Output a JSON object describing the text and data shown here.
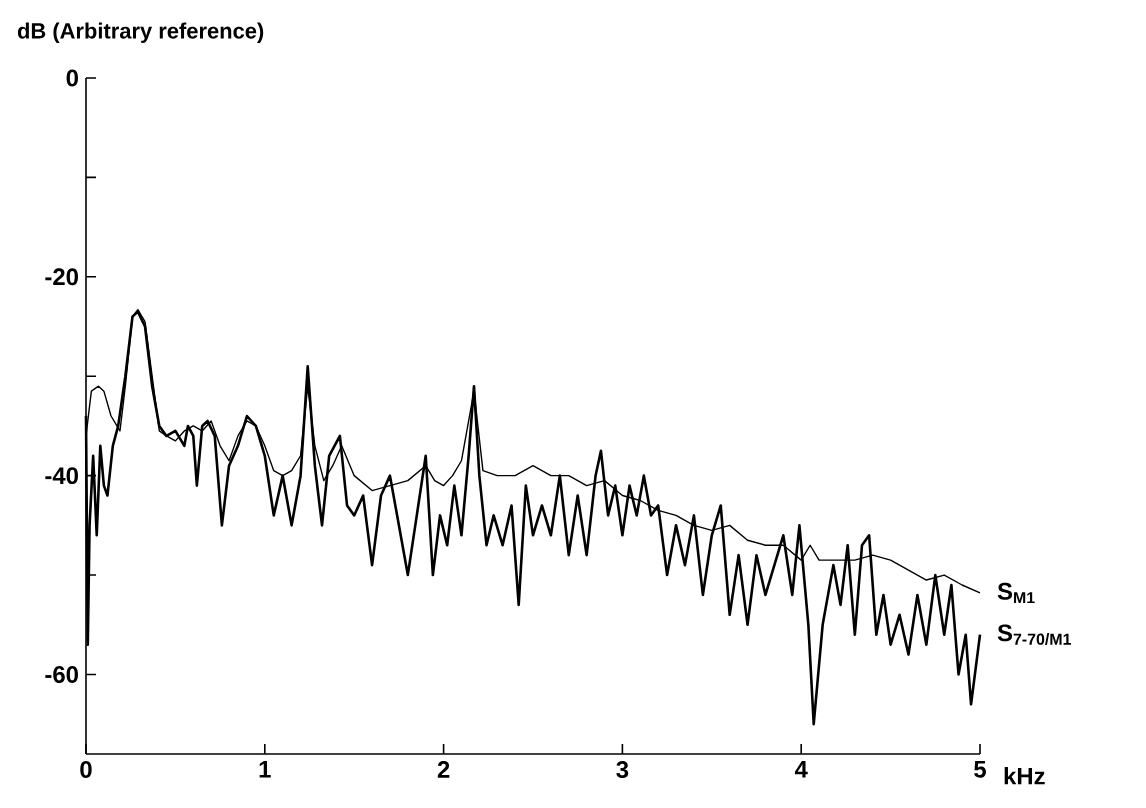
{
  "chart_data": {
    "type": "line",
    "ylabel": "dB (Arbitrary reference)",
    "xlabel": "kHz",
    "xlim": [
      0,
      5
    ],
    "ylim": [
      -68,
      0
    ],
    "xticks": [
      0,
      1,
      2,
      3,
      4,
      5
    ],
    "yticks": [
      0,
      {
        "value": -10,
        "label": null
      },
      -20,
      {
        "value": -30,
        "label": null
      },
      -40,
      {
        "value": -50,
        "label": null
      },
      -60
    ],
    "series": [
      {
        "name": "S$_{M1}$",
        "color": "#000000",
        "x": [
          0.0,
          0.03,
          0.07,
          0.1,
          0.14,
          0.19,
          0.22,
          0.26,
          0.29,
          0.33,
          0.37,
          0.41,
          0.45,
          0.5,
          0.55,
          0.6,
          0.65,
          0.7,
          0.75,
          0.8,
          0.85,
          0.9,
          0.95,
          1.0,
          1.05,
          1.1,
          1.15,
          1.2,
          1.24,
          1.28,
          1.33,
          1.38,
          1.43,
          1.5,
          1.6,
          1.7,
          1.8,
          1.9,
          1.95,
          2.0,
          2.05,
          2.1,
          2.17,
          2.22,
          2.3,
          2.4,
          2.5,
          2.6,
          2.7,
          2.8,
          2.9,
          3.0,
          3.1,
          3.2,
          3.3,
          3.4,
          3.5,
          3.6,
          3.7,
          3.8,
          3.9,
          4.0,
          4.05,
          4.1,
          4.2,
          4.3,
          4.4,
          4.5,
          4.6,
          4.7,
          4.8,
          4.9,
          5.0
        ],
        "values": [
          -36,
          -31.5,
          -31,
          -31.5,
          -34,
          -35.5,
          -31,
          -24,
          -23.3,
          -24.5,
          -30,
          -35.5,
          -36,
          -36.5,
          -35.5,
          -35,
          -35.5,
          -34.5,
          -37,
          -38.5,
          -36,
          -34.5,
          -35,
          -37,
          -39.5,
          -40,
          -39.5,
          -38,
          -31,
          -37,
          -40.5,
          -39,
          -37,
          -40,
          -41.5,
          -41,
          -40.5,
          -39,
          -40.5,
          -41,
          -40,
          -38.5,
          -31.5,
          -39.5,
          -40,
          -40,
          -39,
          -40,
          -40,
          -41,
          -40.5,
          -42,
          -42.5,
          -43.5,
          -44,
          -45,
          -45.5,
          -45,
          -46.5,
          -47,
          -47,
          -48.5,
          -47,
          -48.5,
          -48.5,
          -48.5,
          -48,
          -48.5,
          -49.5,
          -50.5,
          -50,
          -51,
          -51.8
        ]
      },
      {
        "name": "S$_{7-70/M1}$",
        "color": "#000000",
        "x": [
          0.0,
          0.01,
          0.02,
          0.04,
          0.06,
          0.08,
          0.1,
          0.12,
          0.15,
          0.18,
          0.22,
          0.26,
          0.29,
          0.33,
          0.37,
          0.41,
          0.45,
          0.5,
          0.55,
          0.57,
          0.6,
          0.62,
          0.65,
          0.68,
          0.72,
          0.76,
          0.8,
          0.85,
          0.9,
          0.95,
          1.0,
          1.05,
          1.1,
          1.15,
          1.2,
          1.24,
          1.28,
          1.32,
          1.36,
          1.42,
          1.46,
          1.5,
          1.55,
          1.6,
          1.65,
          1.7,
          1.75,
          1.8,
          1.85,
          1.9,
          1.94,
          1.98,
          2.02,
          2.06,
          2.1,
          2.14,
          2.17,
          2.2,
          2.24,
          2.28,
          2.33,
          2.38,
          2.42,
          2.46,
          2.5,
          2.55,
          2.6,
          2.65,
          2.7,
          2.75,
          2.8,
          2.85,
          2.88,
          2.92,
          2.96,
          3.0,
          3.04,
          3.08,
          3.12,
          3.16,
          3.2,
          3.25,
          3.3,
          3.35,
          3.4,
          3.45,
          3.5,
          3.55,
          3.6,
          3.65,
          3.7,
          3.75,
          3.8,
          3.85,
          3.9,
          3.95,
          3.99,
          4.04,
          4.07,
          4.12,
          4.18,
          4.22,
          4.26,
          4.3,
          4.34,
          4.38,
          4.42,
          4.46,
          4.5,
          4.55,
          4.6,
          4.65,
          4.7,
          4.75,
          4.8,
          4.84,
          4.88,
          4.92,
          4.95,
          5.0
        ],
        "values": [
          -34,
          -57,
          -45,
          -38,
          -46,
          -37,
          -41,
          -42,
          -37,
          -35,
          -30,
          -24,
          -23.5,
          -25,
          -31,
          -35,
          -36,
          -35.5,
          -37,
          -35,
          -36,
          -41,
          -35,
          -34.5,
          -36,
          -45,
          -39,
          -37,
          -34,
          -35,
          -38,
          -44,
          -40,
          -45,
          -40,
          -29,
          -39,
          -45,
          -38,
          -36,
          -43,
          -44,
          -42,
          -49,
          -42,
          -40,
          -45,
          -50,
          -44,
          -38,
          -50,
          -44,
          -47,
          -41,
          -46,
          -38,
          -31,
          -40,
          -47,
          -44,
          -47,
          -43,
          -53,
          -41,
          -46,
          -43,
          -46,
          -40,
          -48,
          -42,
          -48,
          -40,
          -37.5,
          -44,
          -41,
          -46,
          -41,
          -44,
          -40,
          -44,
          -43,
          -50,
          -45,
          -49,
          -44,
          -52,
          -46,
          -43,
          -54,
          -48,
          -55,
          -48,
          -52,
          -49,
          -46,
          -52,
          -45,
          -55,
          -65,
          -55,
          -49,
          -53,
          -47,
          -56,
          -47,
          -46,
          -56,
          -52,
          -57,
          -54,
          -58,
          -52,
          -57,
          -50,
          -56,
          -51,
          -60,
          -56,
          -63,
          -56
        ]
      }
    ]
  }
}
